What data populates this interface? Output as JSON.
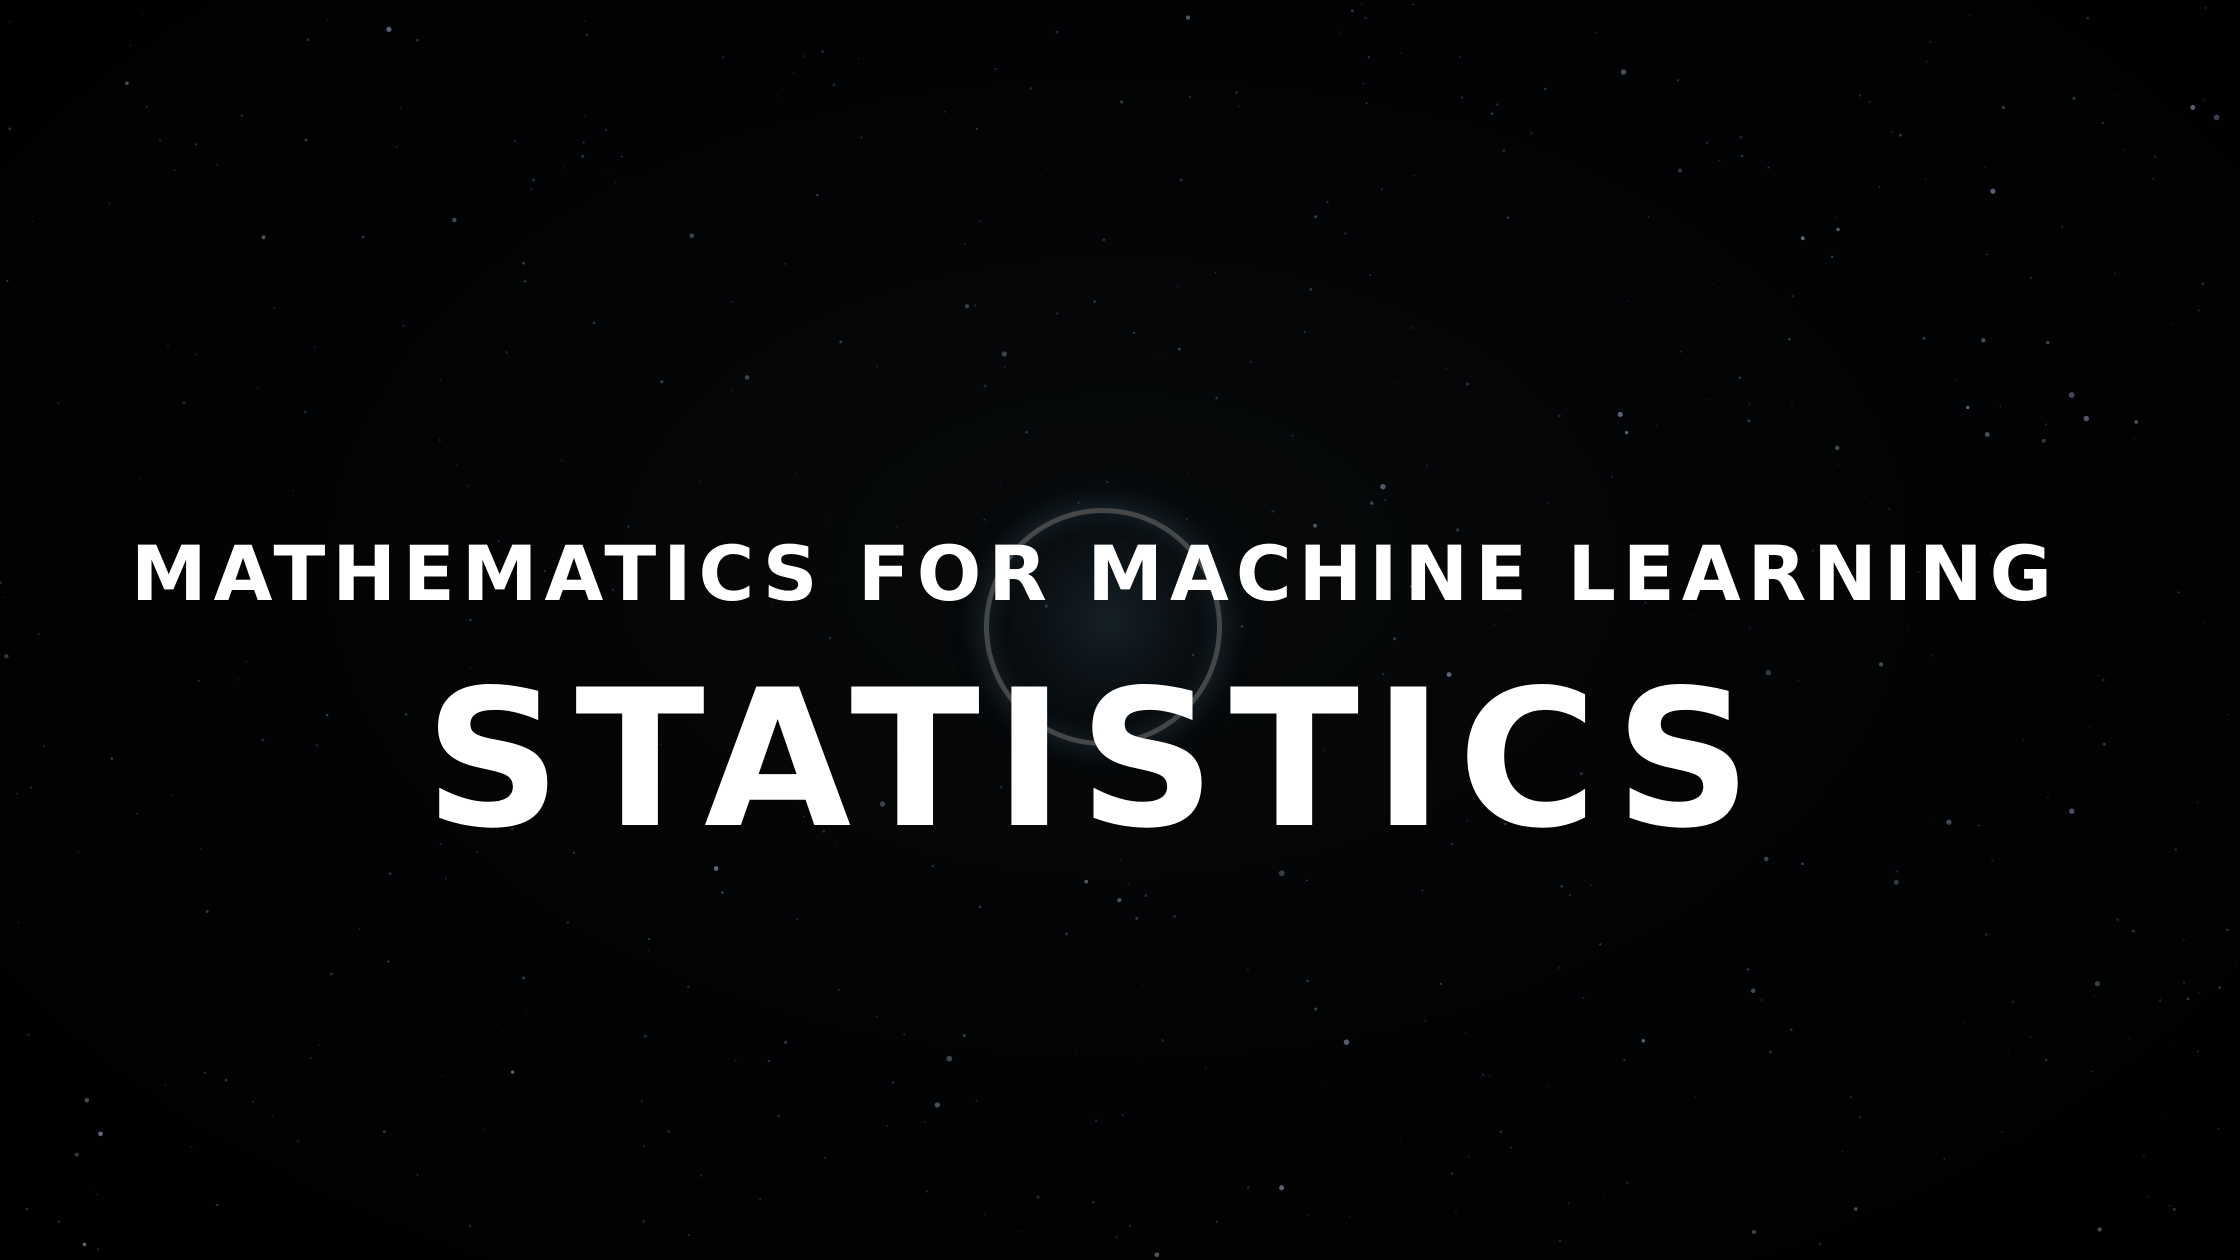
{
  "slide": {
    "subtitle": "MATHEMATICS FOR MACHINE LEARNING",
    "title": "STATISTICS"
  },
  "colors": {
    "background": "#000000",
    "text": "#ffffff",
    "ring": "#787878",
    "glow": "#3c5a6e",
    "stars": "#8c96b4"
  }
}
